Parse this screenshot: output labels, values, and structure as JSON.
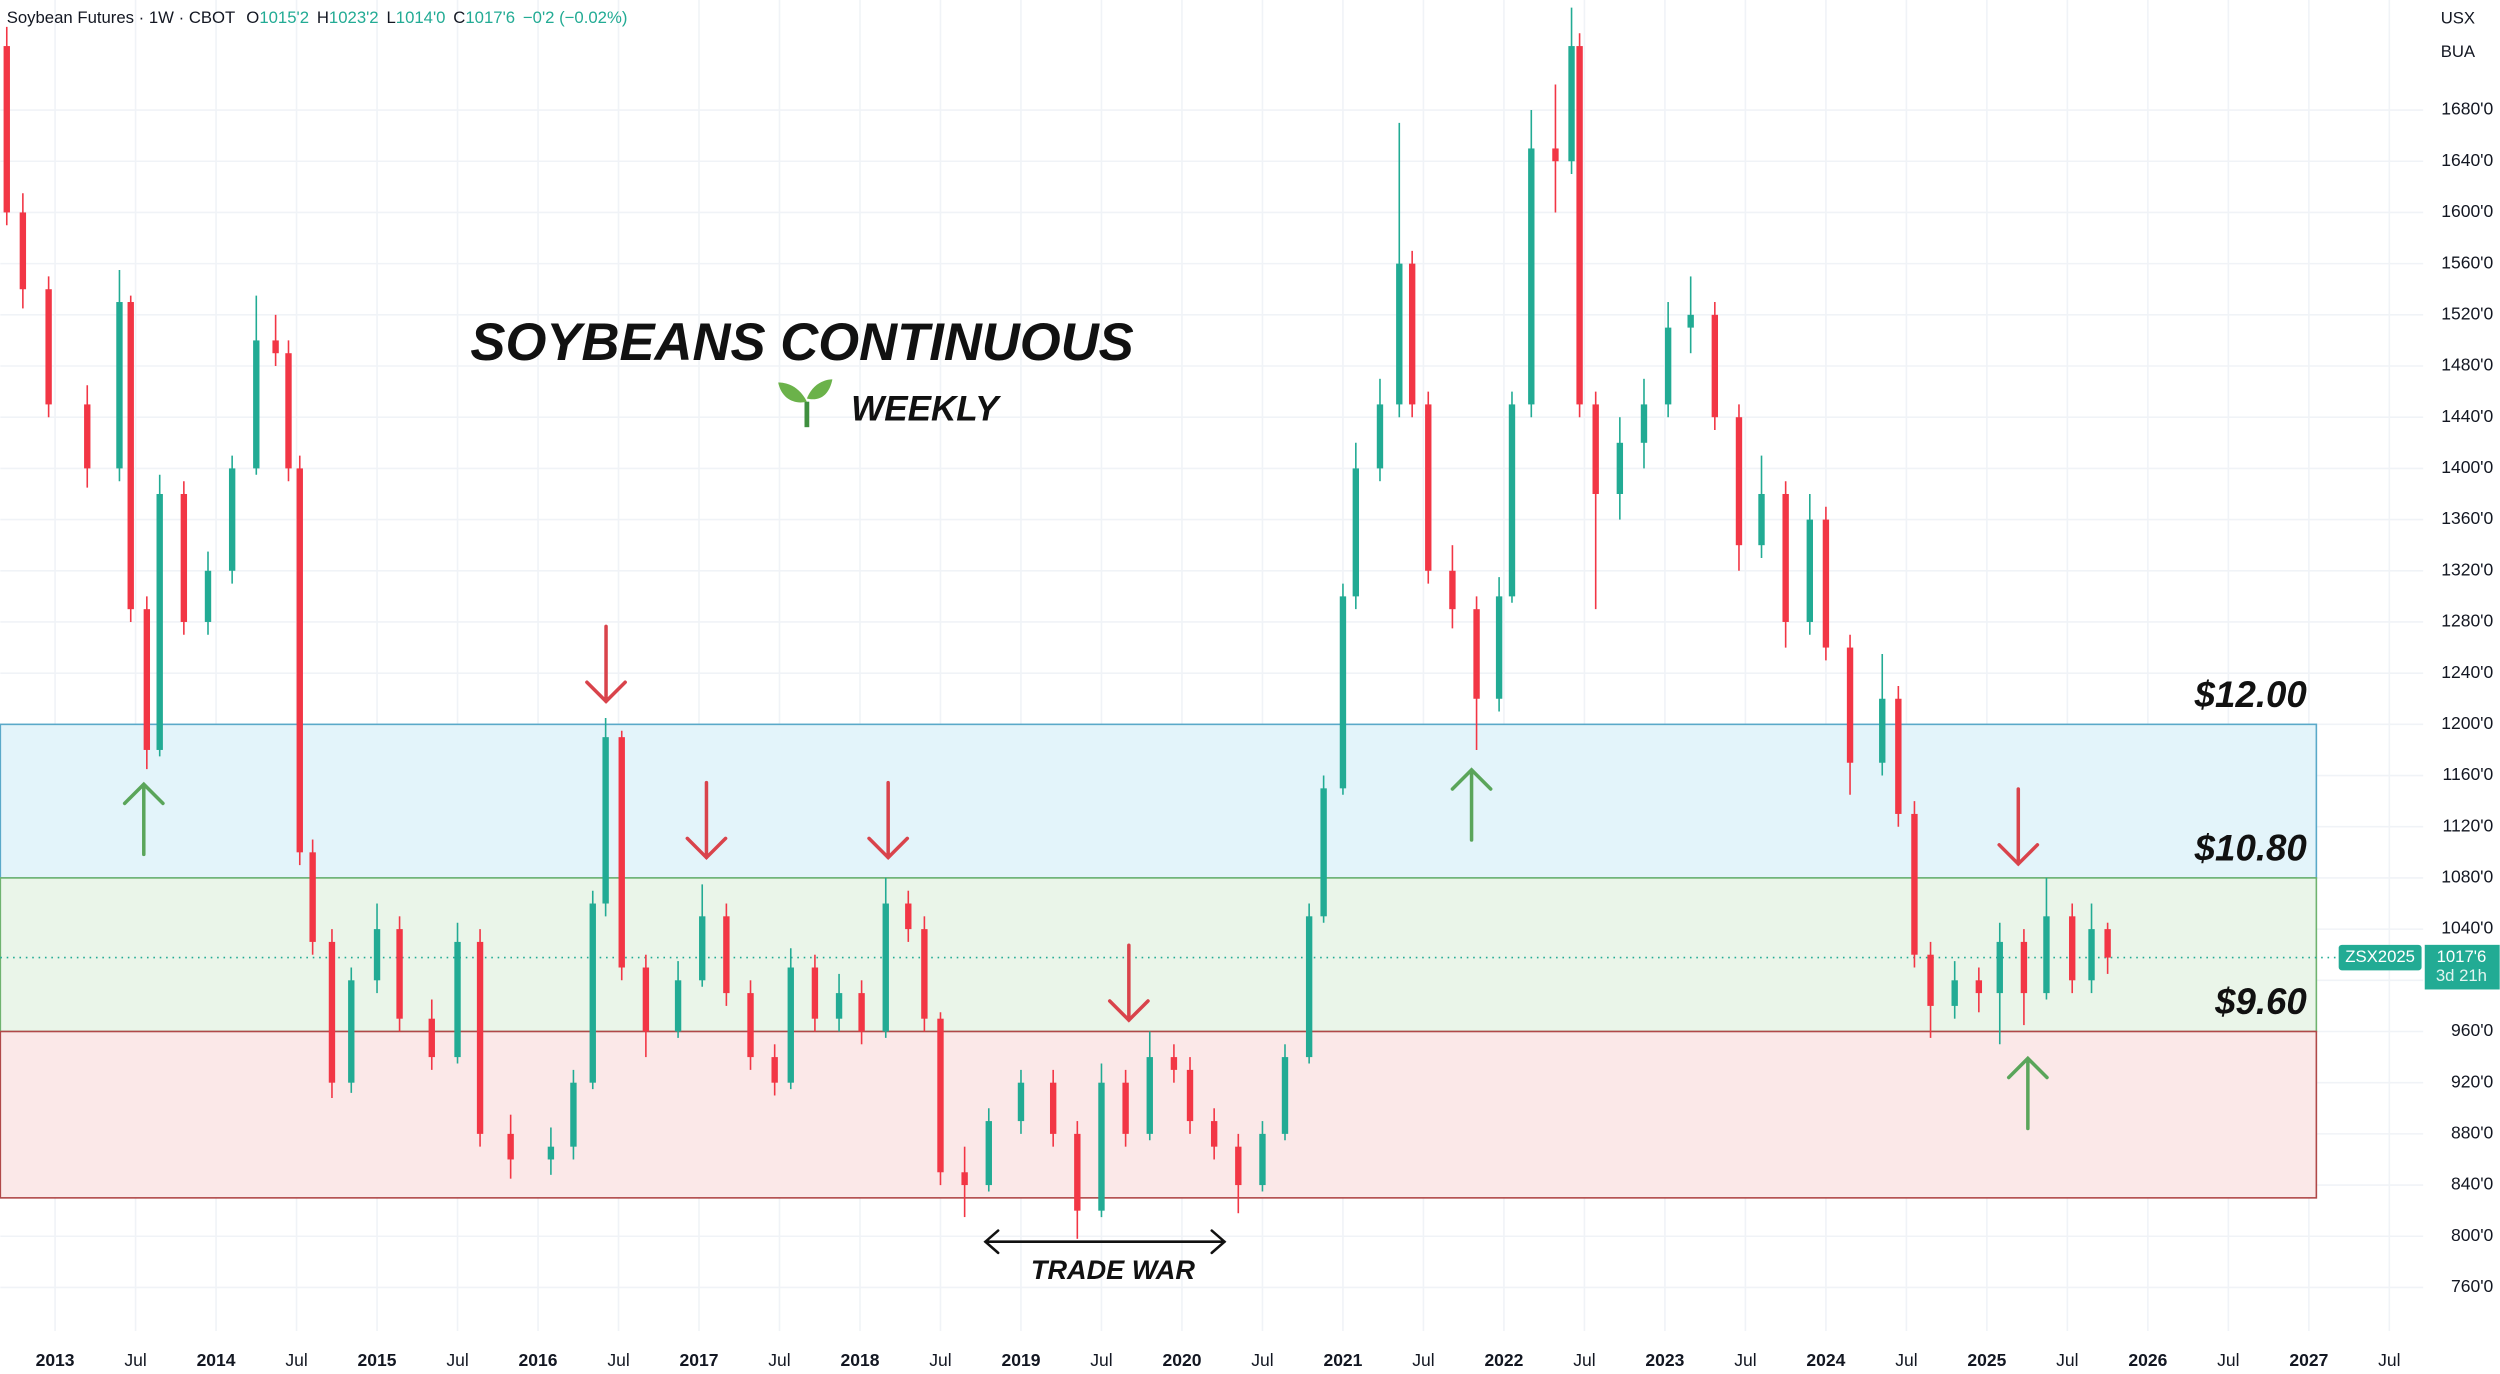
{
  "header": {
    "symbol": "Soybean Futures · 1W · CBOT",
    "ohlc": [
      {
        "k": "O",
        "v": "1015'2"
      },
      {
        "k": "H",
        "v": "1023'2"
      },
      {
        "k": "L",
        "v": "1014'0"
      },
      {
        "k": "C",
        "v": "1017'6"
      }
    ],
    "change": "−0'2 (−0.02%)",
    "currency": "USX",
    "badge": "BUA"
  },
  "chart_data": {
    "type": "candlestick",
    "title": "SOYBEANS CONTINUOUS",
    "subtitle": "WEEKLY",
    "annotation": "TRADE WAR",
    "up_color": "#22ab94",
    "down_color": "#f23645",
    "grid": true,
    "xlim": [
      2012.66,
      2027.71
    ],
    "ylim": [
      726,
      1766
    ],
    "xticks": [
      {
        "value": 2013,
        "label": "2013"
      },
      {
        "value": 2013.5,
        "label": "Jul"
      },
      {
        "value": 2014,
        "label": "2014"
      },
      {
        "value": 2014.5,
        "label": "Jul"
      },
      {
        "value": 2015,
        "label": "2015"
      },
      {
        "value": 2015.5,
        "label": "Jul"
      },
      {
        "value": 2016,
        "label": "2016"
      },
      {
        "value": 2016.5,
        "label": "Jul"
      },
      {
        "value": 2017,
        "label": "2017"
      },
      {
        "value": 2017.5,
        "label": "Jul"
      },
      {
        "value": 2018,
        "label": "2018"
      },
      {
        "value": 2018.5,
        "label": "Jul"
      },
      {
        "value": 2019,
        "label": "2019"
      },
      {
        "value": 2019.5,
        "label": "Jul"
      },
      {
        "value": 2020,
        "label": "2020"
      },
      {
        "value": 2020.5,
        "label": "Jul"
      },
      {
        "value": 2021,
        "label": "2021"
      },
      {
        "value": 2021.5,
        "label": "Jul"
      },
      {
        "value": 2022,
        "label": "2022"
      },
      {
        "value": 2022.5,
        "label": "Jul"
      },
      {
        "value": 2023,
        "label": "2023"
      },
      {
        "value": 2023.5,
        "label": "Jul"
      },
      {
        "value": 2024,
        "label": "2024"
      },
      {
        "value": 2024.5,
        "label": "Jul"
      },
      {
        "value": 2025,
        "label": "2025"
      },
      {
        "value": 2025.5,
        "label": "Jul"
      },
      {
        "value": 2026,
        "label": "2026"
      },
      {
        "value": 2026.5,
        "label": "Jul"
      },
      {
        "value": 2027,
        "label": "2027"
      },
      {
        "value": 2027.5,
        "label": "Jul"
      }
    ],
    "yticks": [
      {
        "value": 760,
        "label": "760'0"
      },
      {
        "value": 800,
        "label": "800'0"
      },
      {
        "value": 840,
        "label": "840'0"
      },
      {
        "value": 880,
        "label": "880'0"
      },
      {
        "value": 920,
        "label": "920'0"
      },
      {
        "value": 960,
        "label": "960'0"
      },
      {
        "value": 1000,
        "label": "1000'0"
      },
      {
        "value": 1040,
        "label": "1040'0"
      },
      {
        "value": 1080,
        "label": "1080'0"
      },
      {
        "value": 1120,
        "label": "1120'0"
      },
      {
        "value": 1160,
        "label": "1160'0"
      },
      {
        "value": 1200,
        "label": "1200'0"
      },
      {
        "value": 1240,
        "label": "1240'0"
      },
      {
        "value": 1280,
        "label": "1280'0"
      },
      {
        "value": 1320,
        "label": "1320'0"
      },
      {
        "value": 1360,
        "label": "1360'0"
      },
      {
        "value": 1400,
        "label": "1400'0"
      },
      {
        "value": 1440,
        "label": "1440'0"
      },
      {
        "value": 1480,
        "label": "1480'0"
      },
      {
        "value": 1520,
        "label": "1520'0"
      },
      {
        "value": 1560,
        "label": "1560'0"
      },
      {
        "value": 1600,
        "label": "1600'0"
      },
      {
        "value": 1640,
        "label": "1640'0"
      },
      {
        "value": 1680,
        "label": "1680'0"
      }
    ],
    "zones": [
      {
        "from": 1080,
        "to": 1200,
        "fill": "#e3f4fa",
        "stroke": "#5aa9c9",
        "label": "$12.00"
      },
      {
        "from": 960,
        "to": 1080,
        "fill": "#eaf5e9",
        "stroke": "#6fb36f",
        "label": "$10.80"
      },
      {
        "from": 830,
        "to": 960,
        "fill": "#fbe8e8",
        "stroke": "#b04848",
        "label": "$9.60"
      }
    ],
    "last_price": 1017.75,
    "last_price_label": "1017'6",
    "last_symbol": "ZSX2025",
    "countdown": "3d 21h",
    "x": [
      2012.7,
      2012.8,
      2012.96,
      2013.2,
      2013.4,
      2013.47,
      2013.57,
      2013.65,
      2013.8,
      2013.95,
      2014.1,
      2014.25,
      2014.37,
      2014.45,
      2014.52,
      2014.6,
      2014.72,
      2014.84,
      2015.0,
      2015.14,
      2015.34,
      2015.5,
      2015.64,
      2015.83,
      2016.08,
      2016.22,
      2016.34,
      2016.42,
      2016.52,
      2016.67,
      2016.87,
      2017.02,
      2017.17,
      2017.32,
      2017.47,
      2017.57,
      2017.72,
      2017.87,
      2018.01,
      2018.16,
      2018.3,
      2018.4,
      2018.5,
      2018.65,
      2018.8,
      2019.0,
      2019.2,
      2019.35,
      2019.5,
      2019.65,
      2019.8,
      2019.95,
      2020.05,
      2020.2,
      2020.35,
      2020.5,
      2020.64,
      2020.79,
      2020.88,
      2021.0,
      2021.08,
      2021.23,
      2021.35,
      2021.43,
      2021.53,
      2021.68,
      2021.83,
      2021.97,
      2022.05,
      2022.17,
      2022.32,
      2022.42,
      2022.47,
      2022.57,
      2022.72,
      2022.87,
      2023.02,
      2023.16,
      2023.31,
      2023.46,
      2023.6,
      2023.75,
      2023.9,
      2024.0,
      2024.15,
      2024.35,
      2024.45,
      2024.55,
      2024.65,
      2024.8,
      2024.95,
      2025.08,
      2025.23,
      2025.37,
      2025.53,
      2025.65,
      2025.75
    ],
    "opens": [
      1730,
      1600,
      1540,
      1450,
      1400,
      1530,
      1290,
      1180,
      1380,
      1280,
      1320,
      1400,
      1500,
      1490,
      1400,
      1100,
      1030,
      920,
      1000,
      1040,
      970,
      940,
      1030,
      880,
      860,
      870,
      920,
      1060,
      1190,
      1010,
      960,
      1000,
      1050,
      990,
      940,
      920,
      1010,
      970,
      990,
      960,
      1060,
      1040,
      970,
      850,
      840,
      890,
      920,
      880,
      820,
      920,
      880,
      940,
      930,
      890,
      870,
      840,
      880,
      940,
      1050,
      1150,
      1300,
      1400,
      1450,
      1560,
      1450,
      1320,
      1290,
      1220,
      1300,
      1450,
      1650,
      1640,
      1730,
      1450,
      1380,
      1420,
      1450,
      1510,
      1520,
      1440,
      1340,
      1380,
      1280,
      1360,
      1260,
      1170,
      1220,
      1130,
      1020,
      980,
      1000,
      990,
      1030,
      990,
      1050,
      1000,
      1040
    ],
    "highs": [
      1745,
      1615,
      1550,
      1465,
      1555,
      1535,
      1300,
      1395,
      1390,
      1335,
      1410,
      1535,
      1520,
      1500,
      1410,
      1110,
      1040,
      1010,
      1060,
      1050,
      985,
      1045,
      1040,
      895,
      885,
      930,
      1070,
      1205,
      1195,
      1020,
      1015,
      1075,
      1060,
      1000,
      950,
      1025,
      1020,
      1005,
      1000,
      1080,
      1070,
      1050,
      975,
      870,
      900,
      930,
      930,
      890,
      935,
      930,
      960,
      950,
      940,
      900,
      880,
      890,
      950,
      1060,
      1160,
      1310,
      1420,
      1470,
      1670,
      1570,
      1460,
      1340,
      1300,
      1315,
      1460,
      1680,
      1700,
      1760,
      1740,
      1460,
      1440,
      1470,
      1530,
      1550,
      1530,
      1450,
      1410,
      1390,
      1380,
      1370,
      1270,
      1255,
      1230,
      1140,
      1030,
      1015,
      1010,
      1045,
      1040,
      1080,
      1060,
      1060,
      1045
    ],
    "lows": [
      1590,
      1525,
      1440,
      1385,
      1390,
      1280,
      1165,
      1175,
      1270,
      1270,
      1310,
      1395,
      1480,
      1390,
      1090,
      1020,
      908,
      912,
      990,
      960,
      930,
      935,
      870,
      845,
      848,
      860,
      915,
      1050,
      1000,
      940,
      955,
      995,
      980,
      930,
      910,
      915,
      960,
      960,
      950,
      955,
      1030,
      960,
      840,
      815,
      835,
      880,
      870,
      798,
      815,
      870,
      875,
      920,
      880,
      860,
      818,
      835,
      875,
      935,
      1045,
      1145,
      1290,
      1390,
      1440,
      1440,
      1310,
      1275,
      1180,
      1210,
      1295,
      1440,
      1600,
      1630,
      1440,
      1290,
      1360,
      1400,
      1440,
      1490,
      1430,
      1320,
      1330,
      1260,
      1270,
      1250,
      1145,
      1160,
      1120,
      1010,
      955,
      970,
      975,
      950,
      965,
      985,
      990,
      990,
      1005
    ],
    "closes": [
      1600,
      1540,
      1450,
      1400,
      1530,
      1290,
      1180,
      1380,
      1280,
      1320,
      1400,
      1500,
      1490,
      1400,
      1100,
      1030,
      920,
      1000,
      1040,
      970,
      940,
      1030,
      880,
      860,
      870,
      920,
      1060,
      1190,
      1010,
      960,
      1000,
      1050,
      990,
      940,
      920,
      1010,
      970,
      990,
      960,
      1060,
      1040,
      970,
      850,
      840,
      890,
      920,
      880,
      820,
      920,
      880,
      940,
      930,
      890,
      870,
      840,
      880,
      940,
      1050,
      1150,
      1300,
      1400,
      1450,
      1560,
      1450,
      1320,
      1290,
      1220,
      1300,
      1450,
      1650,
      1640,
      1730,
      1450,
      1380,
      1420,
      1450,
      1510,
      1520,
      1440,
      1340,
      1380,
      1280,
      1360,
      1260,
      1170,
      1220,
      1130,
      1020,
      980,
      1000,
      990,
      1030,
      990,
      1050,
      1000,
      1040,
      1017.75
    ]
  }
}
